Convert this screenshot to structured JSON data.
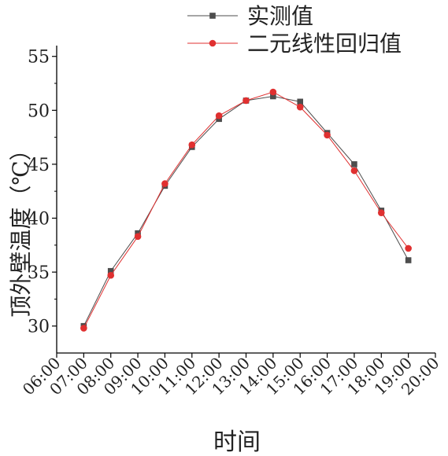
{
  "chart_data": {
    "type": "line",
    "title": "",
    "xlabel": "时间",
    "ylabel": "顶外壁温度（℃）",
    "x_ticks": [
      "06:00",
      "07:00",
      "08:00",
      "09:00",
      "10:00",
      "11:00",
      "12:00",
      "13:00",
      "14:00",
      "15:00",
      "16:00",
      "17:00",
      "18:00",
      "19:00",
      "20:00"
    ],
    "categories": [
      "07:00",
      "08:00",
      "09:00",
      "10:00",
      "11:00",
      "12:00",
      "13:00",
      "14:00",
      "15:00",
      "16:00",
      "17:00",
      "18:00",
      "19:00"
    ],
    "ylim": [
      27.5,
      56
    ],
    "y_ticks": [
      30,
      35,
      40,
      45,
      50,
      55
    ],
    "grid": false,
    "legend_position": "top-center",
    "series": [
      {
        "name": "实测值",
        "color": "#4d4d4d",
        "marker": "square",
        "values": [
          30.0,
          35.1,
          38.6,
          43.0,
          46.6,
          49.2,
          50.9,
          51.3,
          50.8,
          47.9,
          45.0,
          40.7,
          36.1
        ]
      },
      {
        "name": "二元线性回归值",
        "color": "#e03030",
        "marker": "circle",
        "values": [
          29.8,
          34.7,
          38.3,
          43.2,
          46.8,
          49.5,
          50.9,
          51.7,
          50.3,
          47.7,
          44.4,
          40.5,
          37.2
        ]
      }
    ]
  }
}
